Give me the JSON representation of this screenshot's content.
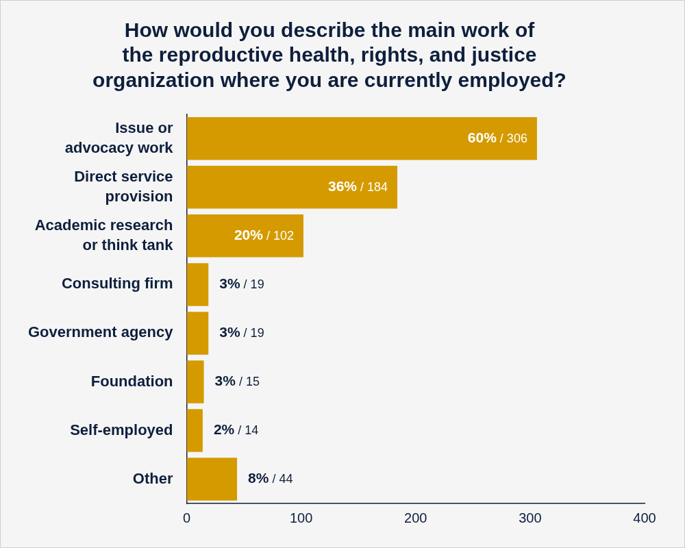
{
  "chart_data": {
    "type": "bar",
    "orientation": "horizontal",
    "title": [
      "How would you describe the main work of",
      "the reproductive health, rights, and justice",
      "organization where you are currently employed?"
    ],
    "categories": [
      [
        "Issue or",
        "advocacy work"
      ],
      [
        "Direct service",
        "provision"
      ],
      [
        "Academic research",
        "or think tank"
      ],
      "Consulting firm",
      "Government agency",
      "Foundation",
      "Self-employed",
      "Other"
    ],
    "values": [
      306,
      184,
      102,
      19,
      19,
      15,
      14,
      44
    ],
    "value_labels": [
      "60% / 306",
      "36% / 184",
      "20% / 102",
      "3% / 19",
      "3% / 19",
      "3% / 15",
      "2% / 14",
      "8% / 44"
    ],
    "data_labels": true,
    "color": "#d49a00",
    "xlim": [
      0,
      400
    ],
    "xticks": [
      0,
      100,
      200,
      300,
      400
    ],
    "grid": false
  }
}
